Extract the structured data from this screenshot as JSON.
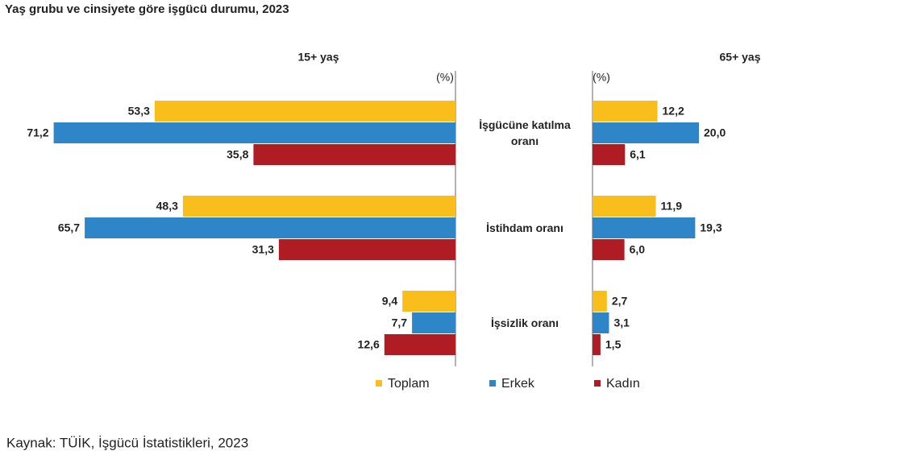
{
  "chart_data": {
    "type": "bar",
    "orientation": "horizontal",
    "title": "Yaş grubu ve cinsiyete göre işgücü durumu, 2023",
    "categories": [
      "İşgücüne katılma oranı",
      "İstihdam oranı",
      "İşsizlik oranı"
    ],
    "series": [
      {
        "name": "Toplam",
        "color": "#f9be1c"
      },
      {
        "name": "Erkek",
        "color": "#2e86c8"
      },
      {
        "name": "Kadın",
        "color": "#b01c24"
      }
    ],
    "panels": [
      {
        "title": "15+ yaş",
        "unit_label": "(%)",
        "direction": "left",
        "xlim": [
          0,
          80
        ],
        "values": [
          [
            53.3,
            71.2,
            35.8
          ],
          [
            48.3,
            65.7,
            31.3
          ],
          [
            9.4,
            7.7,
            12.6
          ]
        ],
        "value_labels": [
          [
            "53,3",
            "71,2",
            "35,8"
          ],
          [
            "48,3",
            "65,7",
            "31,3"
          ],
          [
            "9,4",
            "7,7",
            "12,6"
          ]
        ]
      },
      {
        "title": "65+ yaş",
        "unit_label": "(%)",
        "direction": "right",
        "xlim": [
          0,
          30
        ],
        "values": [
          [
            12.2,
            20.0,
            6.1
          ],
          [
            11.9,
            19.3,
            6.0
          ],
          [
            2.7,
            3.1,
            1.5
          ]
        ],
        "value_labels": [
          [
            "12,2",
            "20,0",
            "6,1"
          ],
          [
            "11,9",
            "19,3",
            "6,0"
          ],
          [
            "2,7",
            "3,1",
            "1,5"
          ]
        ]
      }
    ],
    "source": "Kaynak: TÜİK, İşgücü İstatistikleri, 2023"
  }
}
